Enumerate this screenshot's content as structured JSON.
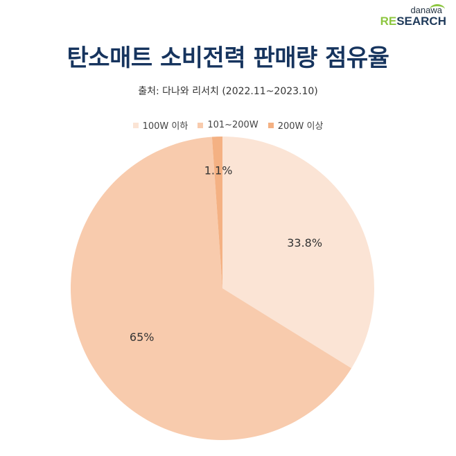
{
  "logo": {
    "top": "danawa",
    "bottom_re": "RE",
    "bottom_rest": "SEARCH"
  },
  "chart_data": {
    "type": "pie",
    "title": "탄소매트 소비전력 판매량 점유율",
    "subtitle": "출처: 다나와 리서치 (2022.11~2023.10)",
    "legend_position": "top",
    "slices": [
      {
        "name": "100W 이하",
        "value": 33.8,
        "label": "33.8%",
        "color": "#fbe4d5"
      },
      {
        "name": "101~200W",
        "value": 65,
        "label": "65%",
        "color": "#f8cbad"
      },
      {
        "name": "200W 이상",
        "value": 1.1,
        "label": "1.1%",
        "color": "#f4b183"
      }
    ]
  }
}
